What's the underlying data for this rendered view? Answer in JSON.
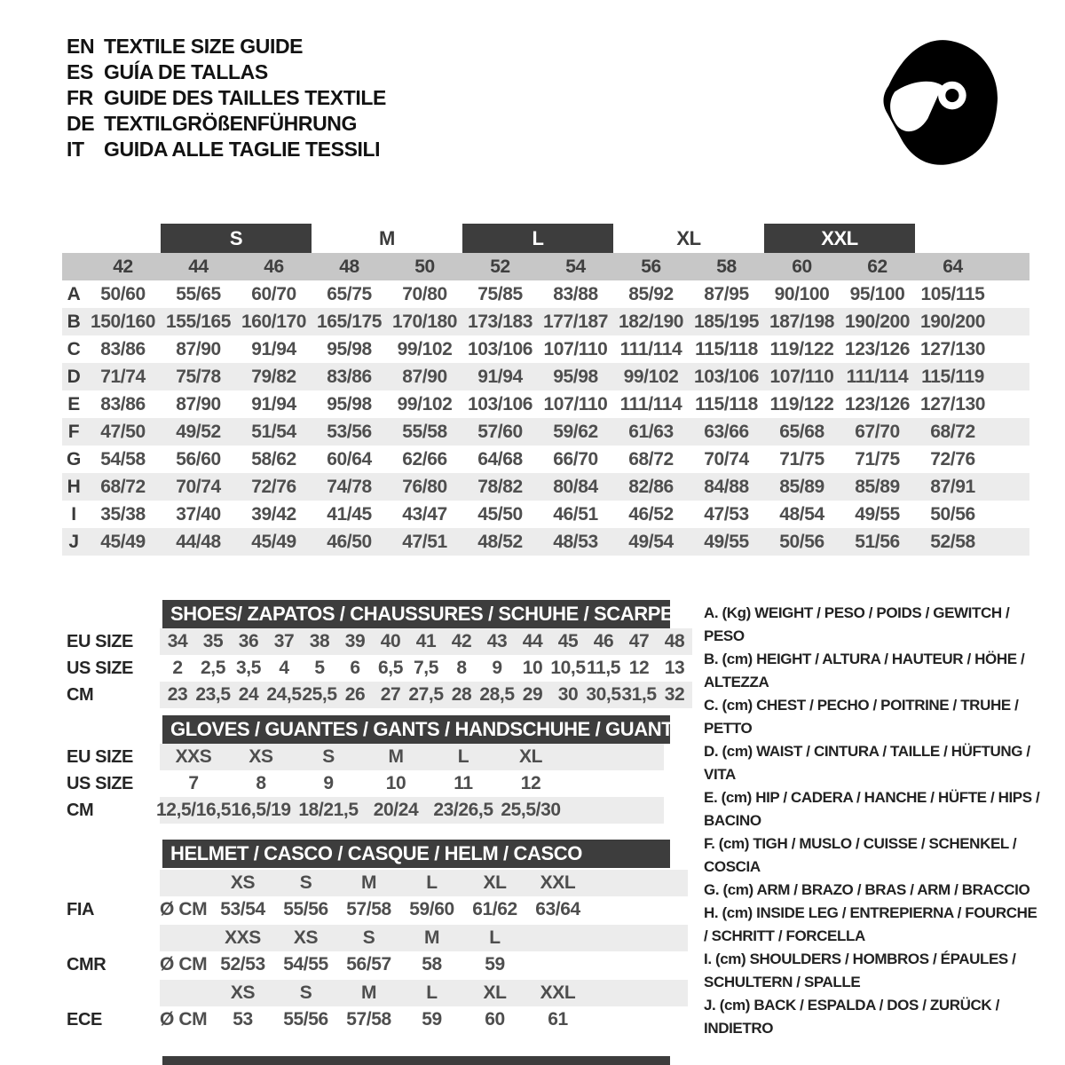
{
  "colors": {
    "bar_dark": "#3d3d3d",
    "strip_gray": "#c7c7c7",
    "row_alt": "#ececec",
    "text": "#4e4e4e",
    "bar_text": "#ffffff"
  },
  "languages": [
    {
      "code": "EN",
      "label": "TEXTILE SIZE GUIDE"
    },
    {
      "code": "ES",
      "label": "GUÍA DE TALLAS"
    },
    {
      "code": "FR",
      "label": "GUIDE DES TAILLES TEXTILE"
    },
    {
      "code": "DE",
      "label": "TEXTILGRÖßENFÜHRUNG"
    },
    {
      "code": "IT",
      "label": "GUIDA ALLE TAGLIE TESSILI"
    }
  ],
  "logo_icon": "racing-helmet-icon",
  "textile": {
    "size_bands": [
      {
        "label": "S",
        "filled": true
      },
      {
        "label": "M",
        "filled": false
      },
      {
        "label": "L",
        "filled": true
      },
      {
        "label": "XL",
        "filled": false
      },
      {
        "label": "XXL",
        "filled": true
      }
    ],
    "eu_sizes": [
      "42",
      "44",
      "46",
      "48",
      "50",
      "52",
      "54",
      "56",
      "58",
      "60",
      "62",
      "64"
    ],
    "rows": [
      {
        "letter": "A",
        "values": [
          "50/60",
          "55/65",
          "60/70",
          "65/75",
          "70/80",
          "75/85",
          "83/88",
          "85/92",
          "87/95",
          "90/100",
          "95/100",
          "105/115"
        ]
      },
      {
        "letter": "B",
        "values": [
          "150/160",
          "155/165",
          "160/170",
          "165/175",
          "170/180",
          "173/183",
          "177/187",
          "182/190",
          "185/195",
          "187/198",
          "190/200",
          "190/200"
        ]
      },
      {
        "letter": "C",
        "values": [
          "83/86",
          "87/90",
          "91/94",
          "95/98",
          "99/102",
          "103/106",
          "107/110",
          "111/114",
          "115/118",
          "119/122",
          "123/126",
          "127/130"
        ]
      },
      {
        "letter": "D",
        "values": [
          "71/74",
          "75/78",
          "79/82",
          "83/86",
          "87/90",
          "91/94",
          "95/98",
          "99/102",
          "103/106",
          "107/110",
          "111/114",
          "115/119"
        ]
      },
      {
        "letter": "E",
        "values": [
          "83/86",
          "87/90",
          "91/94",
          "95/98",
          "99/102",
          "103/106",
          "107/110",
          "111/114",
          "115/118",
          "119/122",
          "123/126",
          "127/130"
        ]
      },
      {
        "letter": "F",
        "values": [
          "47/50",
          "49/52",
          "51/54",
          "53/56",
          "55/58",
          "57/60",
          "59/62",
          "61/63",
          "63/66",
          "65/68",
          "67/70",
          "68/72"
        ]
      },
      {
        "letter": "G",
        "values": [
          "54/58",
          "56/60",
          "58/62",
          "60/64",
          "62/66",
          "64/68",
          "66/70",
          "68/72",
          "70/74",
          "71/75",
          "71/75",
          "72/76"
        ]
      },
      {
        "letter": "H",
        "values": [
          "68/72",
          "70/74",
          "72/76",
          "74/78",
          "76/80",
          "78/82",
          "80/84",
          "82/86",
          "84/88",
          "85/89",
          "85/89",
          "87/91"
        ]
      },
      {
        "letter": "I",
        "values": [
          "35/38",
          "37/40",
          "39/42",
          "41/45",
          "43/47",
          "45/50",
          "46/51",
          "46/52",
          "47/53",
          "48/54",
          "49/55",
          "50/56"
        ]
      },
      {
        "letter": "J",
        "values": [
          "45/49",
          "44/48",
          "45/49",
          "46/50",
          "47/51",
          "48/52",
          "48/53",
          "49/54",
          "49/55",
          "50/56",
          "51/56",
          "52/58"
        ]
      }
    ]
  },
  "shoes": {
    "title": "SHOES/ ZAPATOS / CHAUSSURES / SCHUHE / SCARPE",
    "row_labels": [
      "EU SIZE",
      "US SIZE",
      "CM"
    ],
    "eu": [
      "34",
      "35",
      "36",
      "37",
      "38",
      "39",
      "40",
      "41",
      "42",
      "43",
      "44",
      "45",
      "46",
      "47",
      "48"
    ],
    "us": [
      "2",
      "2,5",
      "3,5",
      "4",
      "5",
      "6",
      "6,5",
      "7,5",
      "8",
      "9",
      "10",
      "10,5",
      "11,5",
      "12",
      "13"
    ],
    "cm": [
      "23",
      "23,5",
      "24",
      "24,5",
      "25,5",
      "26",
      "27",
      "27,5",
      "28",
      "28,5",
      "29",
      "30",
      "30,5",
      "31,5",
      "32"
    ]
  },
  "gloves": {
    "title": "GLOVES / GUANTES / GANTS / HANDSCHUHE / GUANTI",
    "row_labels": [
      "EU SIZE",
      "US SIZE",
      "CM"
    ],
    "eu": [
      "XXS",
      "XS",
      "S",
      "M",
      "L",
      "XL"
    ],
    "us": [
      "7",
      "8",
      "9",
      "10",
      "11",
      "12"
    ],
    "cm": [
      "12,5/16,5",
      "16,5/19",
      "18/21,5",
      "20/24",
      "23/26,5",
      "25,5/30"
    ]
  },
  "helmet": {
    "title": "HELMET / CASCO / CASQUE / HELM / CASCO",
    "unit_label": "Ø CM",
    "standards": [
      {
        "name": "FIA",
        "sizes": [
          "XS",
          "S",
          "M",
          "L",
          "XL",
          "XXL"
        ],
        "values": [
          "53/54",
          "55/56",
          "57/58",
          "59/60",
          "61/62",
          "63/64"
        ]
      },
      {
        "name": "CMR",
        "sizes": [
          "XXS",
          "XS",
          "S",
          "M",
          "L",
          ""
        ],
        "values": [
          "52/53",
          "54/55",
          "56/57",
          "58",
          "59",
          ""
        ]
      },
      {
        "name": "ECE",
        "sizes": [
          "XS",
          "S",
          "M",
          "L",
          "XL",
          "XXL"
        ],
        "values": [
          "53",
          "55/56",
          "57/58",
          "59",
          "60",
          "61"
        ]
      }
    ]
  },
  "legend": [
    {
      "key": "A.",
      "unit": "(Kg)",
      "text": "WEIGHT / PESO / POIDS / GEWITCH / PESO"
    },
    {
      "key": "B.",
      "unit": "(cm)",
      "text": "HEIGHT / ALTURA / HAUTEUR / HÖHE / ALTEZZA"
    },
    {
      "key": "C.",
      "unit": "(cm)",
      "text": "CHEST / PECHO / POITRINE / TRUHE / PETTO"
    },
    {
      "key": "D.",
      "unit": "(cm)",
      "text": "WAIST / CINTURA / TAILLE / HÜFTUNG / VITA"
    },
    {
      "key": "E.",
      "unit": "(cm)",
      "text": "HIP / CADERA / HANCHE / HÜFTE / HIPS / BACINO"
    },
    {
      "key": "F.",
      "unit": "(cm)",
      "text": "TIGH / MUSLO / CUISSE / SCHENKEL / COSCIA"
    },
    {
      "key": "G.",
      "unit": "(cm)",
      "text": "ARM / BRAZO / BRAS / ARM / BRACCIO"
    },
    {
      "key": "H.",
      "unit": "(cm)",
      "text": "INSIDE LEG / ENTREPIERNA / FOURCHE / SCHRITT / FORCELLA"
    },
    {
      "key": "I.",
      "unit": "(cm)",
      "text": "SHOULDERS / HOMBROS / ÉPAULES / SCHULTERN / SPALLE"
    },
    {
      "key": "J.",
      "unit": "(cm)",
      "text": "BACK / ESPALDA / DOS / ZURÜCK / INDIETRO"
    }
  ]
}
